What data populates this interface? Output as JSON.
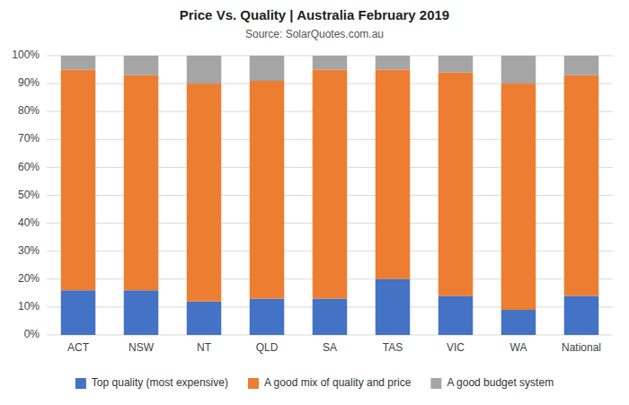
{
  "chart_data": {
    "type": "bar",
    "stacked": true,
    "title": "Price Vs. Quality | Australia February 2019",
    "subtitle": "Source: SolarQuotes.com.au",
    "categories": [
      "ACT",
      "NSW",
      "NT",
      "QLD",
      "SA",
      "TAS",
      "VIC",
      "WA",
      "National"
    ],
    "series": [
      {
        "name": "Top quality (most expensive)",
        "color": "#4472C4",
        "values": [
          16,
          16,
          12,
          13,
          13,
          20,
          14,
          9,
          14
        ]
      },
      {
        "name": "A good mix of quality and price",
        "color": "#ED7D31",
        "values": [
          79,
          77,
          78,
          78,
          82,
          75,
          80,
          81,
          79
        ]
      },
      {
        "name": "A good budget system",
        "color": "#A5A5A5",
        "values": [
          5,
          7,
          10,
          9,
          5,
          5,
          6,
          10,
          7
        ]
      }
    ],
    "ylim": [
      0,
      100
    ],
    "yticks": [
      {
        "value": 0,
        "label": "0%"
      },
      {
        "value": 10,
        "label": "10%"
      },
      {
        "value": 20,
        "label": "20%"
      },
      {
        "value": 30,
        "label": "30%"
      },
      {
        "value": 40,
        "label": "40%"
      },
      {
        "value": 50,
        "label": "50%"
      },
      {
        "value": 60,
        "label": "60%"
      },
      {
        "value": 70,
        "label": "70%"
      },
      {
        "value": 80,
        "label": "80%"
      },
      {
        "value": 90,
        "label": "90%"
      },
      {
        "value": 100,
        "label": "100%"
      }
    ],
    "grid": true,
    "legend": "bottom"
  }
}
